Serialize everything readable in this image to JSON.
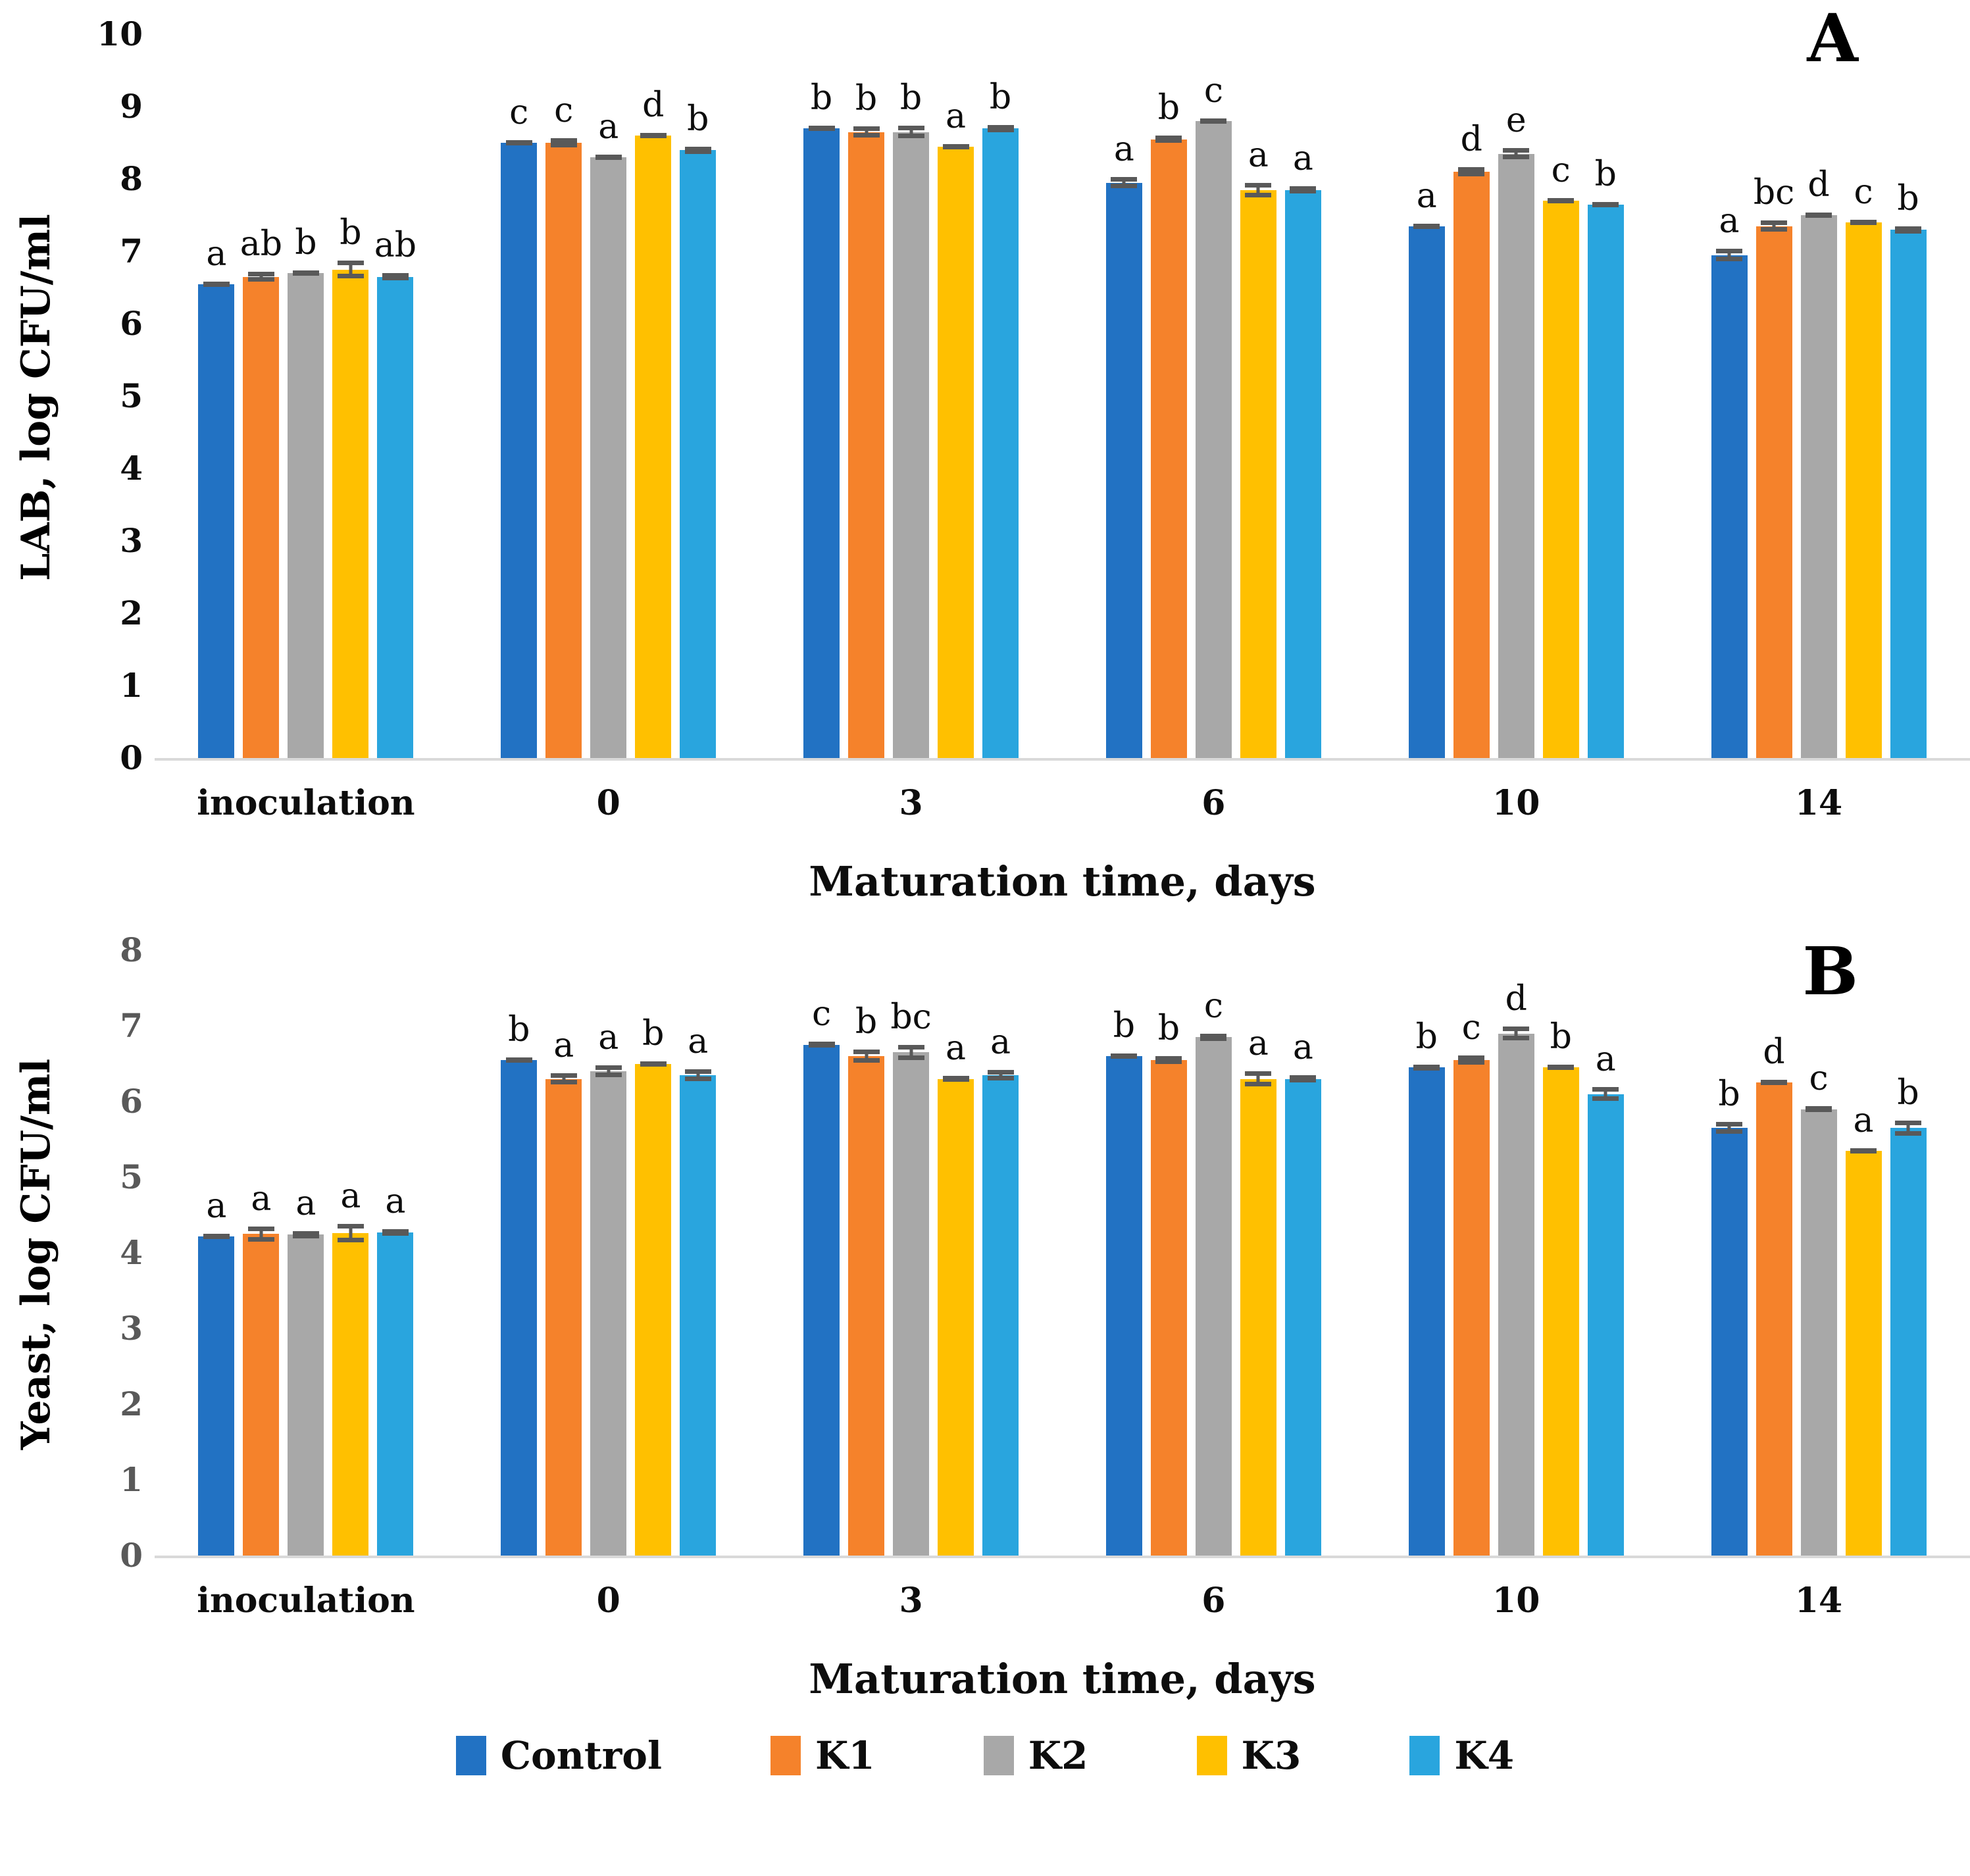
{
  "chart_data": [
    {
      "type": "bar",
      "panel_label": "A",
      "ylabel": "LAB, log CFU/ml",
      "xlabel": "Maturation time, days",
      "ylim": [
        0,
        10
      ],
      "yticks": [
        "0",
        "1",
        "2",
        "3",
        "4",
        "5",
        "6",
        "7",
        "8",
        "9",
        "10"
      ],
      "categories": [
        "inoculation",
        "0",
        "3",
        "6",
        "10",
        "14"
      ],
      "grid": false,
      "error_bars": true,
      "legend_position": "bottom-shared",
      "series": [
        {
          "name": "Control",
          "color": "#2272c3",
          "values": [
            6.55,
            8.5,
            8.7,
            7.95,
            7.35,
            6.95
          ],
          "errors": [
            0.03,
            0.04,
            0.04,
            0.08,
            0.03,
            0.09
          ],
          "letters": [
            "a",
            "c",
            "b",
            "a",
            "a",
            "a"
          ]
        },
        {
          "name": "K1",
          "color": "#f5822b",
          "values": [
            6.65,
            8.5,
            8.65,
            8.55,
            8.1,
            7.35
          ],
          "errors": [
            0.07,
            0.06,
            0.08,
            0.05,
            0.06,
            0.08
          ],
          "letters": [
            "ab",
            "c",
            "b",
            "b",
            "d",
            "bc"
          ]
        },
        {
          "name": "K2",
          "color": "#a8a8a8",
          "values": [
            6.7,
            8.3,
            8.65,
            8.8,
            8.35,
            7.5
          ],
          "errors": [
            0.04,
            0.03,
            0.09,
            0.03,
            0.08,
            0.04
          ],
          "letters": [
            "b",
            "a",
            "b",
            "c",
            "e",
            "d"
          ]
        },
        {
          "name": "K3",
          "color": "#ffc000",
          "values": [
            6.75,
            8.6,
            8.45,
            7.85,
            7.7,
            7.4
          ],
          "errors": [
            0.12,
            0.03,
            0.03,
            0.1,
            0.03,
            0.03
          ],
          "letters": [
            "b",
            "d",
            "a",
            "a",
            "c",
            "c"
          ]
        },
        {
          "name": "K4",
          "color": "#29a5de",
          "values": [
            6.65,
            8.4,
            8.7,
            7.85,
            7.65,
            7.3
          ],
          "errors": [
            0.05,
            0.05,
            0.05,
            0.05,
            0.03,
            0.05
          ],
          "letters": [
            "ab",
            "b",
            "b",
            "a",
            "b",
            "b"
          ]
        }
      ]
    },
    {
      "type": "bar",
      "panel_label": "B",
      "ylabel": "Yeast, log CFU/ml",
      "xlabel": "Maturation time, days",
      "ylim": [
        0,
        8
      ],
      "yticks": [
        "0",
        "1",
        "2",
        "3",
        "4",
        "5",
        "6",
        "7",
        "8"
      ],
      "categories": [
        "inoculation",
        "0",
        "3",
        "6",
        "10",
        "14"
      ],
      "grid": false,
      "error_bars": true,
      "legend_position": "bottom-shared",
      "series": [
        {
          "name": "Control",
          "color": "#2272c3",
          "values": [
            4.22,
            6.55,
            6.75,
            6.6,
            6.45,
            5.65
          ],
          "errors": [
            0.03,
            0.03,
            0.04,
            0.03,
            0.04,
            0.08
          ],
          "letters": [
            "a",
            "b",
            "c",
            "b",
            "b",
            "b"
          ]
        },
        {
          "name": "K1",
          "color": "#f5822b",
          "values": [
            4.25,
            6.3,
            6.6,
            6.55,
            6.55,
            6.25
          ],
          "errors": [
            0.1,
            0.07,
            0.09,
            0.05,
            0.06,
            0.03
          ],
          "letters": [
            "a",
            "a",
            "b",
            "b",
            "c",
            "d"
          ]
        },
        {
          "name": "K2",
          "color": "#a8a8a8",
          "values": [
            4.24,
            6.4,
            6.65,
            6.85,
            6.9,
            5.9
          ],
          "errors": [
            0.05,
            0.08,
            0.1,
            0.05,
            0.09,
            0.04
          ],
          "letters": [
            "a",
            "a",
            "bc",
            "c",
            "d",
            "c"
          ]
        },
        {
          "name": "K3",
          "color": "#ffc000",
          "values": [
            4.26,
            6.5,
            6.3,
            6.3,
            6.45,
            5.35
          ],
          "errors": [
            0.12,
            0.03,
            0.04,
            0.1,
            0.03,
            0.03
          ],
          "letters": [
            "a",
            "b",
            "a",
            "a",
            "b",
            "a"
          ]
        },
        {
          "name": "K4",
          "color": "#29a5de",
          "values": [
            4.27,
            6.35,
            6.35,
            6.3,
            6.1,
            5.65
          ],
          "errors": [
            0.04,
            0.08,
            0.07,
            0.05,
            0.09,
            0.1
          ],
          "letters": [
            "a",
            "a",
            "a",
            "a",
            "a",
            "b"
          ]
        }
      ]
    }
  ],
  "legend": {
    "items": [
      {
        "label": "Control",
        "color": "#2272c3"
      },
      {
        "label": "K1",
        "color": "#f5822b"
      },
      {
        "label": "K2",
        "color": "#a8a8a8"
      },
      {
        "label": "K3",
        "color": "#ffc000"
      },
      {
        "label": "K4",
        "color": "#29a5de"
      }
    ]
  },
  "style_colors": {
    "error_bar": "#595959",
    "baseline": "#d9d9d9",
    "tick_color_panel_a": "#0d0d0d",
    "tick_color_panel_b": "#595959"
  }
}
